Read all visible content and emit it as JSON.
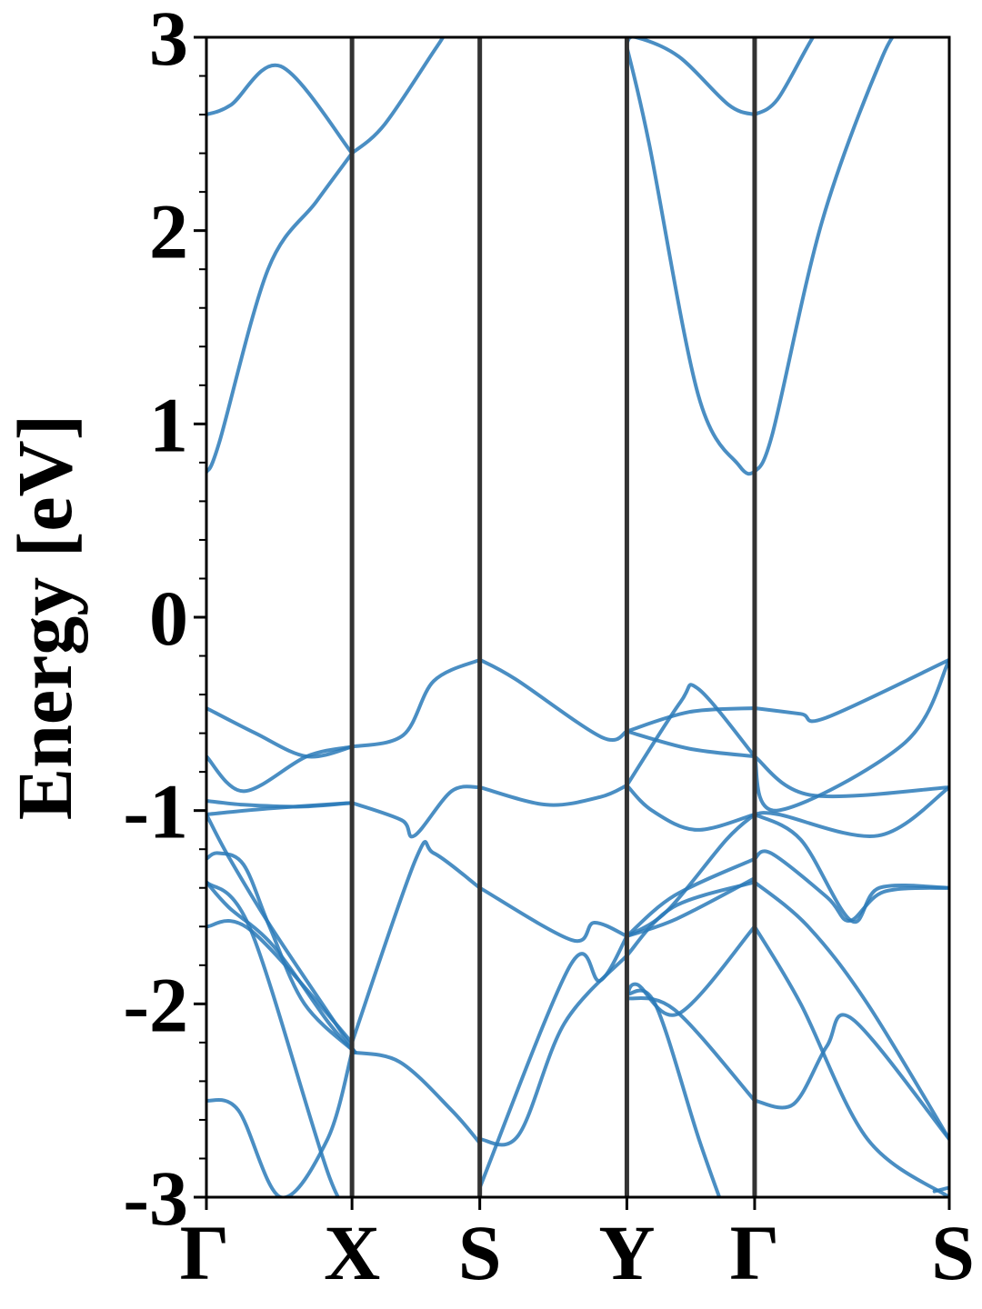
{
  "chart_data": {
    "type": "line",
    "ylabel": "Energy [eV]",
    "xlabel": "",
    "ylim": [
      -3,
      3
    ],
    "yticks": [
      "-3",
      "-2",
      "-1",
      "0",
      "1",
      "2",
      "3"
    ],
    "kpath": [
      "Γ",
      "X",
      "S",
      "Y",
      "Γ",
      "S"
    ],
    "kpath_positions": [
      0,
      0.196,
      0.368,
      0.566,
      0.738,
      1.0
    ],
    "grid": false,
    "colors": {
      "band": "#2a7ab8",
      "divider": "#333333",
      "axis": "#000000"
    },
    "series": [
      {
        "x": [
          0,
          0.033,
          0.1,
          0.196
        ],
        "values": [
          2.6,
          2.65,
          2.85,
          2.4
        ]
      },
      {
        "x": [
          0.196,
          0.24,
          0.31,
          0.33,
          0.368
        ],
        "values": [
          2.4,
          2.55,
          2.95,
          3.05,
          3.1
        ]
      },
      {
        "x": [
          0,
          0.017,
          0.083,
          0.148,
          0.196
        ],
        "values": [
          0.75,
          0.9,
          1.8,
          2.15,
          2.4
        ]
      },
      {
        "x": [
          0.566,
          0.596,
          0.662,
          0.718,
          0.738
        ],
        "values": [
          2.95,
          2.45,
          1.15,
          0.78,
          0.75
        ]
      },
      {
        "x": [
          0.738,
          0.762,
          0.829,
          0.91,
          0.94
        ],
        "values": [
          0.75,
          0.95,
          2.05,
          2.9,
          3.05
        ]
      },
      {
        "x": [
          0.566,
          0.578,
          0.636,
          0.703,
          0.738
        ],
        "values": [
          2.97,
          3.0,
          2.9,
          2.65,
          2.6
        ]
      },
      {
        "x": [
          0.738,
          0.769,
          0.82,
          0.84
        ],
        "values": [
          2.6,
          2.68,
          3.02,
          3.05
        ]
      },
      {
        "x": [
          0,
          0.066,
          0.135,
          0.196
        ],
        "values": [
          -0.47,
          -0.6,
          -0.72,
          -0.67
        ]
      },
      {
        "x": [
          0.196,
          0.265,
          0.306,
          0.368
        ],
        "values": [
          -0.67,
          -0.61,
          -0.33,
          -0.22
        ]
      },
      {
        "x": [
          0.368,
          0.416,
          0.532,
          0.566
        ],
        "values": [
          -0.22,
          -0.32,
          -0.62,
          -0.59
        ]
      },
      {
        "x": [
          0.566,
          0.65,
          0.738
        ],
        "values": [
          -0.59,
          -0.49,
          -0.47
        ]
      },
      {
        "x": [
          0.738,
          0.8,
          0.834,
          1.0
        ],
        "values": [
          -0.47,
          -0.5,
          -0.52,
          -0.22
        ]
      },
      {
        "x": [
          0.566,
          0.65,
          0.738
        ],
        "values": [
          -0.59,
          -0.68,
          -0.72
        ]
      },
      {
        "x": [
          0.738,
          0.814,
          1.0
        ],
        "values": [
          -0.72,
          -0.92,
          -0.88
        ]
      },
      {
        "x": [
          0,
          0.05,
          0.135,
          0.196
        ],
        "values": [
          -0.72,
          -0.9,
          -0.72,
          -0.67
        ]
      },
      {
        "x": [
          0,
          0.05,
          0.127,
          0.196
        ],
        "values": [
          -0.95,
          -0.97,
          -0.98,
          -0.96
        ]
      },
      {
        "x": [
          0.196,
          0.263,
          0.28,
          0.33,
          0.368
        ],
        "values": [
          -0.96,
          -1.05,
          -1.13,
          -0.9,
          -0.88
        ]
      },
      {
        "x": [
          0.368,
          0.458,
          0.53,
          0.566
        ],
        "values": [
          -0.88,
          -0.97,
          -0.93,
          -0.87
        ]
      },
      {
        "x": [
          0.566,
          0.6,
          0.66,
          0.738
        ],
        "values": [
          -0.87,
          -1.0,
          -1.1,
          -1.02
        ]
      },
      {
        "x": [
          0,
          0.082,
          0.196
        ],
        "values": [
          -1.02,
          -0.99,
          -0.96
        ]
      },
      {
        "x": [
          0.738,
          0.77,
          0.904,
          1.0
        ],
        "values": [
          -1.02,
          -1.02,
          -1.13,
          -0.88
        ]
      },
      {
        "x": [
          0.566,
          0.638,
          0.662,
          0.738
        ],
        "values": [
          -0.87,
          -0.44,
          -0.37,
          -0.72
        ]
      },
      {
        "x": [
          0.738,
          0.768,
          0.94,
          1.0
        ],
        "values": [
          -0.72,
          -1.0,
          -0.65,
          -0.22
        ]
      },
      {
        "x": [
          0,
          0.03,
          0.09,
          0.2
        ],
        "values": [
          -1.02,
          -1.24,
          -1.62,
          -2.25
        ]
      },
      {
        "x": [
          0,
          0.016,
          0.05,
          0.085,
          0.132,
          0.2
        ],
        "values": [
          -1.25,
          -1.22,
          -1.28,
          -1.6,
          -2.0,
          -2.25
        ]
      },
      {
        "x": [
          0,
          0.03,
          0.09,
          0.165,
          0.2
        ],
        "values": [
          -1.37,
          -1.5,
          -1.7,
          -2.1,
          -2.25
        ]
      },
      {
        "x": [
          0.196,
          0.282,
          0.306,
          0.368
        ],
        "values": [
          -2.2,
          -1.25,
          -1.22,
          -1.4
        ]
      },
      {
        "x": [
          0.368,
          0.492,
          0.522,
          0.566
        ],
        "values": [
          -1.4,
          -1.67,
          -1.58,
          -1.65
        ]
      },
      {
        "x": [
          0.566,
          0.63,
          0.738
        ],
        "values": [
          -1.65,
          -1.44,
          -1.25
        ]
      },
      {
        "x": [
          0.738,
          0.76,
          0.836,
          0.866,
          0.912,
          1.0
        ],
        "values": [
          -1.25,
          -1.22,
          -1.45,
          -1.57,
          -1.42,
          -1.4
        ]
      },
      {
        "x": [
          0.566,
          0.62,
          0.7,
          0.738
        ],
        "values": [
          -1.65,
          -1.52,
          -1.15,
          -1.02
        ]
      },
      {
        "x": [
          0.738,
          0.8,
          0.868,
          0.906,
          1.0
        ],
        "values": [
          -1.02,
          -1.15,
          -1.57,
          -1.4,
          -1.4
        ]
      },
      {
        "x": [
          0.368,
          0.42,
          0.482,
          0.566
        ],
        "values": [
          -2.7,
          -2.68,
          -2.1,
          -1.75
        ]
      },
      {
        "x": [
          0.368,
          0.49,
          0.53,
          0.566
        ],
        "values": [
          -2.95,
          -1.8,
          -1.88,
          -1.65
        ]
      },
      {
        "x": [
          0.566,
          0.628,
          0.738
        ],
        "values": [
          -1.75,
          -1.5,
          -1.37
        ]
      },
      {
        "x": [
          0.738,
          0.81,
          0.89,
          1.0
        ],
        "values": [
          -1.37,
          -1.6,
          -2.0,
          -2.7
        ]
      },
      {
        "x": [
          0.566,
          0.633,
          0.738
        ],
        "values": [
          -1.65,
          -1.56,
          -1.35
        ]
      },
      {
        "x": [
          0,
          0.06,
          0.196
        ],
        "values": [
          -1.6,
          -1.62,
          -2.2
        ]
      },
      {
        "x": [
          0,
          0.043,
          0.1,
          0.163,
          0.196
        ],
        "values": [
          -2.5,
          -2.55,
          -3.0,
          -2.7,
          -2.25
        ]
      },
      {
        "x": [
          0.196,
          0.26,
          0.33,
          0.368
        ],
        "values": [
          -2.25,
          -2.3,
          -2.55,
          -2.72
        ]
      },
      {
        "x": [
          0,
          0.06,
          0.166,
          0.2
        ],
        "values": [
          -1.37,
          -1.62,
          -2.9,
          -3.05
        ]
      },
      {
        "x": [
          0.566,
          0.604,
          0.663,
          0.7
        ],
        "values": [
          -1.95,
          -2.0,
          -2.7,
          -3.1
        ]
      },
      {
        "x": [
          0.566,
          0.63,
          0.738
        ],
        "values": [
          -1.97,
          -2.03,
          -2.5
        ]
      },
      {
        "x": [
          0.738,
          0.79,
          0.835,
          0.87,
          1.0
        ],
        "values": [
          -2.5,
          -2.52,
          -2.22,
          -2.08,
          -2.7
        ]
      },
      {
        "x": [
          0.566,
          0.58,
          0.636,
          0.738
        ],
        "values": [
          -1.96,
          -1.9,
          -2.05,
          -1.6
        ]
      },
      {
        "x": [
          0.738,
          0.8,
          0.89,
          1.0
        ],
        "values": [
          -1.6,
          -2.0,
          -2.7,
          -3.0
        ]
      },
      {
        "x": [
          0.98,
          1.0
        ],
        "values": [
          -2.97,
          -2.95
        ]
      }
    ]
  }
}
